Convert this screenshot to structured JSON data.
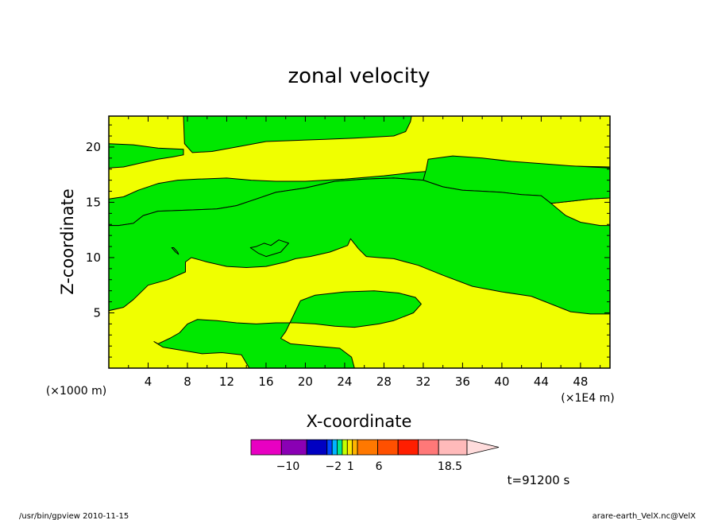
{
  "chart_data": {
    "type": "contour",
    "title": "zonal velocity",
    "xlabel": "X-coordinate",
    "ylabel": "Z-coordinate",
    "x_unit_left": "(×1000 m)",
    "x_unit_right": "(×1E4 m)",
    "xlim": [
      0,
      51
    ],
    "ylim": [
      0,
      22.8
    ],
    "xticks": [
      4,
      8,
      12,
      16,
      20,
      24,
      28,
      32,
      36,
      40,
      44,
      48
    ],
    "yticks": [
      5,
      10,
      15,
      20
    ],
    "background_color": "#f0ff00",
    "region_color": "#00e800",
    "regions": [
      [
        [
          7.6,
          22.8
        ],
        [
          7.7,
          20.3
        ],
        [
          8.5,
          19.5
        ],
        [
          10.5,
          19.6
        ],
        [
          13,
          20
        ],
        [
          16,
          20.5
        ],
        [
          19,
          20.6
        ],
        [
          22,
          20.7
        ],
        [
          25,
          20.8
        ],
        [
          27,
          20.9
        ],
        [
          29,
          21
        ],
        [
          30.2,
          21.4
        ],
        [
          30.7,
          22.3
        ],
        [
          30.8,
          22.8
        ]
      ],
      [
        [
          0,
          18.1
        ],
        [
          1.5,
          18.2
        ],
        [
          3,
          18.5
        ],
        [
          5,
          18.9
        ],
        [
          6.5,
          19.1
        ],
        [
          7.6,
          19.3
        ],
        [
          7.6,
          19.8
        ],
        [
          5,
          19.9
        ],
        [
          2.5,
          20.2
        ],
        [
          0,
          20.3
        ]
      ],
      [
        [
          0,
          15.3
        ],
        [
          1.5,
          15.5
        ],
        [
          3,
          16.1
        ],
        [
          5,
          16.7
        ],
        [
          7,
          17
        ],
        [
          9,
          17.1
        ],
        [
          12,
          17.2
        ],
        [
          14.5,
          17
        ],
        [
          17,
          16.9
        ],
        [
          20,
          16.9
        ],
        [
          24,
          17.1
        ],
        [
          28,
          17.4
        ],
        [
          31,
          17.7
        ],
        [
          34,
          17.9
        ],
        [
          37,
          18
        ],
        [
          40,
          18
        ],
        [
          43,
          18.1
        ],
        [
          46,
          18.3
        ],
        [
          51,
          18.2
        ],
        [
          51,
          15.4
        ],
        [
          49,
          15.3
        ],
        [
          47,
          15.1
        ],
        [
          45,
          14.9
        ],
        [
          44,
          15.6
        ],
        [
          42,
          15.7
        ],
        [
          40,
          15.9
        ],
        [
          38,
          16
        ],
        [
          36,
          16.1
        ],
        [
          34,
          16.4
        ],
        [
          32,
          17
        ],
        [
          29,
          17.2
        ],
        [
          26,
          17.1
        ],
        [
          23,
          16.9
        ],
        [
          20,
          16.3
        ],
        [
          17,
          15.9
        ],
        [
          15,
          15.3
        ],
        [
          13,
          14.7
        ],
        [
          11,
          14.4
        ],
        [
          8,
          14.3
        ],
        [
          5,
          14.2
        ],
        [
          3.5,
          13.8
        ],
        [
          2.5,
          13.1
        ],
        [
          1,
          12.9
        ],
        [
          0,
          12.9
        ]
      ],
      [
        [
          32.5,
          18.9
        ],
        [
          35,
          19.2
        ],
        [
          38,
          19
        ],
        [
          41,
          18.7
        ],
        [
          44,
          18.5
        ],
        [
          47,
          18.3
        ],
        [
          51,
          18.1
        ],
        [
          51,
          15.4
        ],
        [
          49,
          15.3
        ],
        [
          47,
          15.1
        ],
        [
          45,
          14.9
        ],
        [
          44,
          15.6
        ],
        [
          42,
          15.7
        ],
        [
          40,
          15.9
        ],
        [
          38,
          16
        ],
        [
          36,
          16.1
        ],
        [
          34,
          16.4
        ],
        [
          32,
          17
        ],
        [
          32.3,
          18
        ]
      ],
      [
        [
          0,
          12.9
        ],
        [
          1,
          12.9
        ],
        [
          2.5,
          13.1
        ],
        [
          3.5,
          13.8
        ],
        [
          5,
          14.2
        ],
        [
          8,
          14.3
        ],
        [
          11,
          14.4
        ],
        [
          13,
          14.7
        ],
        [
          15,
          15.3
        ],
        [
          17,
          15.9
        ],
        [
          20,
          16.3
        ],
        [
          23,
          16.9
        ],
        [
          26,
          17.1
        ],
        [
          29,
          17.2
        ],
        [
          32,
          17
        ],
        [
          34,
          16.4
        ],
        [
          36,
          16.1
        ],
        [
          38,
          16
        ],
        [
          40,
          15.9
        ],
        [
          42,
          15.7
        ],
        [
          44,
          15.6
        ],
        [
          45,
          14.9
        ],
        [
          46.5,
          13.8
        ],
        [
          48,
          13.2
        ],
        [
          50,
          12.9
        ],
        [
          51,
          12.9
        ],
        [
          51,
          4.9
        ],
        [
          49,
          4.9
        ],
        [
          47,
          5.1
        ],
        [
          45,
          5.8
        ],
        [
          43,
          6.5
        ],
        [
          40,
          6.9
        ],
        [
          37,
          7.4
        ],
        [
          34,
          8.4
        ],
        [
          31.5,
          9.3
        ],
        [
          29,
          9.9
        ],
        [
          27.5,
          10
        ],
        [
          26.2,
          10.1
        ],
        [
          25.4,
          10.8
        ],
        [
          24.6,
          11.7
        ],
        [
          24.3,
          11.1
        ],
        [
          22.5,
          10.5
        ],
        [
          20.5,
          10.1
        ],
        [
          19,
          9.9
        ],
        [
          18,
          9.6
        ],
        [
          16,
          9.2
        ],
        [
          14,
          9.1
        ],
        [
          12,
          9.2
        ],
        [
          10,
          9.6
        ],
        [
          8.4,
          10
        ],
        [
          7.8,
          9.6
        ],
        [
          7.8,
          8.7
        ],
        [
          6,
          8
        ],
        [
          4,
          7.5
        ],
        [
          2.5,
          6.2
        ],
        [
          1.5,
          5.5
        ],
        [
          0,
          5.2
        ]
      ],
      [
        [
          6.4,
          10.9
        ],
        [
          6.8,
          10.5
        ],
        [
          7.1,
          10.3
        ],
        [
          7,
          10.5
        ],
        [
          6.6,
          10.9
        ]
      ],
      [
        [
          14.4,
          10.9
        ],
        [
          15.2,
          10.4
        ],
        [
          16,
          10.1
        ],
        [
          17.5,
          10.5
        ],
        [
          18.3,
          11.3
        ],
        [
          17.3,
          11.6
        ],
        [
          16.5,
          11.1
        ],
        [
          15.8,
          11.3
        ],
        [
          15,
          11
        ]
      ],
      [
        [
          19.5,
          6.1
        ],
        [
          21,
          6.6
        ],
        [
          24,
          6.9
        ],
        [
          27,
          7
        ],
        [
          29.5,
          6.8
        ],
        [
          31.2,
          6.4
        ],
        [
          31.8,
          5.8
        ],
        [
          31,
          5
        ],
        [
          29,
          4.3
        ],
        [
          27.5,
          4
        ],
        [
          25,
          3.7
        ],
        [
          23,
          3.8
        ],
        [
          21,
          4
        ],
        [
          19,
          4.1
        ],
        [
          17,
          4.1
        ],
        [
          15,
          4
        ],
        [
          13,
          4.1
        ],
        [
          11,
          4.3
        ],
        [
          9,
          4.4
        ],
        [
          8,
          4
        ],
        [
          7.2,
          3.2
        ],
        [
          6.2,
          2.7
        ],
        [
          5,
          2.2
        ],
        [
          4.6,
          2.4
        ],
        [
          5.5,
          1.9
        ],
        [
          7.5,
          1.6
        ],
        [
          9.5,
          1.3
        ],
        [
          11.5,
          1.4
        ],
        [
          13.5,
          1.2
        ],
        [
          14.3,
          0
        ],
        [
          25,
          0
        ],
        [
          24.7,
          1
        ],
        [
          23.5,
          1.8
        ],
        [
          21,
          2
        ],
        [
          18.5,
          2.2
        ],
        [
          17.5,
          2.7
        ],
        [
          18,
          3.3
        ]
      ]
    ],
    "colorbar": {
      "colors": [
        "#e800c2",
        "#8a00b4",
        "#0000c2",
        "#0046ff",
        "#00b4ff",
        "#00e890",
        "#c6ff00",
        "#ffe800",
        "#ffb400",
        "#ff7800",
        "#ff5000",
        "#ff1e00",
        "#ff7878",
        "#ffbaba"
      ],
      "widths": [
        3,
        2.5,
        2,
        0.5,
        0.5,
        0.5,
        0.5,
        0.5,
        0.5,
        2,
        2,
        2,
        2,
        2.8
      ],
      "extend_color": "#ffdcdc",
      "tick_labels": [
        {
          "value": -10,
          "label": "−10"
        },
        {
          "value": -2,
          "label": "−2"
        },
        {
          "value": 1,
          "label": "1"
        },
        {
          "value": 6,
          "label": "6"
        },
        {
          "value": 18.5,
          "label": "18.5"
        }
      ],
      "range": [
        -16.5,
        21.5
      ]
    },
    "time_label": "t=91200 s",
    "footer_left": "/usr/bin/gpview   2010-11-15",
    "footer_right": "arare-earth_VelX.nc@VelX"
  }
}
